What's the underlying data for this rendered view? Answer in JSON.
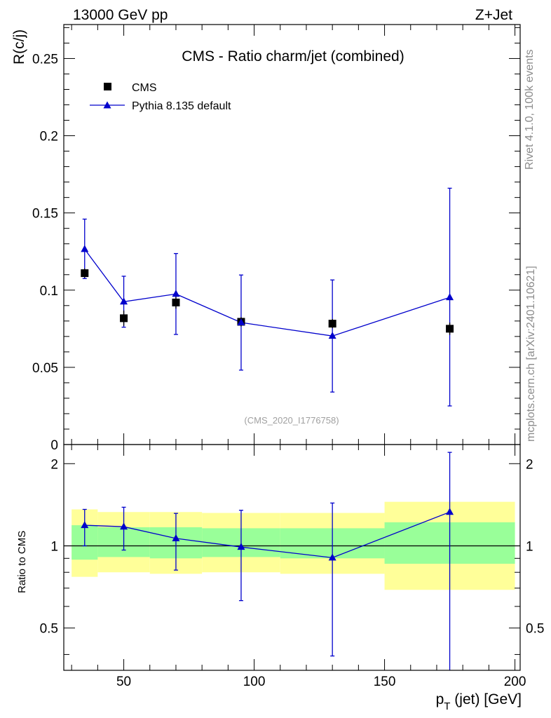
{
  "header": {
    "left_label": "13000 GeV pp",
    "right_label": "Z+Jet"
  },
  "side_labels": {
    "rivet": "Rivet 4.1.0,  100k events",
    "mcplots": "mcplots.cern.ch [arXiv:2401.10621]"
  },
  "chart_data": [
    {
      "type": "scatter",
      "panel": "main",
      "title": "CMS - Ratio charm/jet (combined)",
      "ylabel": "R(c/j)",
      "xlabel": "",
      "watermark": "(CMS_2020_I1776758)",
      "xlim": [
        27,
        202
      ],
      "ylim": [
        0,
        0.272
      ],
      "yticks": [
        0,
        0.05,
        0.1,
        0.15,
        0.2,
        0.25
      ],
      "ytick_labels": [
        "0",
        "0.05",
        "0.1",
        "0.15",
        "0.2",
        "0.25"
      ],
      "legend_position": "top-left",
      "series": [
        {
          "name": "CMS",
          "kind": "data",
          "color": "#000000",
          "x": [
            35,
            50,
            70,
            95,
            130,
            175
          ],
          "values": [
            0.111,
            0.0818,
            0.092,
            0.0795,
            0.0783,
            0.075
          ],
          "err_low": [
            0.003,
            0.005,
            0.004,
            0.003,
            0.003,
            0.004
          ],
          "err_high": [
            0.003,
            0.005,
            0.004,
            0.003,
            0.003,
            0.004
          ]
        },
        {
          "name": "Pythia 8.135 default",
          "kind": "mc",
          "color": "#0000cc",
          "x": [
            35,
            50,
            70,
            95,
            130,
            175
          ],
          "values": [
            0.1265,
            0.0925,
            0.0975,
            0.079,
            0.0703,
            0.0953
          ],
          "err_low": [
            0.019,
            0.0165,
            0.0262,
            0.0308,
            0.0363,
            0.0703
          ],
          "err_high": [
            0.0195,
            0.0165,
            0.0262,
            0.0308,
            0.0363,
            0.0707
          ]
        }
      ]
    },
    {
      "type": "scatter",
      "panel": "ratio",
      "ylabel": "Ratio to CMS",
      "xlabel": "p_T (jet) [GeV]",
      "xlabel_main": "p",
      "xlabel_sub": "T",
      "xlabel_rest": " (jet) [GeV]",
      "xlim": [
        27,
        202
      ],
      "ylim": [
        0.35,
        2.35
      ],
      "yticks": [
        0.5,
        1,
        2
      ],
      "ytick_labels": [
        "0.5",
        "1",
        "2"
      ],
      "xticks": [
        50,
        100,
        150,
        200
      ],
      "xtick_labels": [
        "50",
        "100",
        "150",
        "200"
      ],
      "bins": [
        [
          30,
          40
        ],
        [
          40,
          60
        ],
        [
          60,
          80
        ],
        [
          80,
          110
        ],
        [
          110,
          150
        ],
        [
          150,
          200
        ]
      ],
      "band_inner": [
        [
          0.89,
          1.19
        ],
        [
          0.91,
          1.17
        ],
        [
          0.9,
          1.17
        ],
        [
          0.91,
          1.16
        ],
        [
          0.9,
          1.16
        ],
        [
          0.86,
          1.22
        ]
      ],
      "band_outer": [
        [
          0.77,
          1.36
        ],
        [
          0.8,
          1.33
        ],
        [
          0.79,
          1.33
        ],
        [
          0.8,
          1.32
        ],
        [
          0.79,
          1.32
        ],
        [
          0.69,
          1.45
        ]
      ],
      "band_inner_color": "#99ff99",
      "band_outer_color": "#ffff99",
      "series": [
        {
          "name": "Pythia 8.135 default",
          "color": "#0000cc",
          "x": [
            35,
            50,
            70,
            95,
            130,
            175
          ],
          "values": [
            1.19,
            1.175,
            1.065,
            0.99,
            0.905,
            1.33
          ],
          "err_low": [
            0.19,
            0.21,
            0.25,
            0.36,
            0.51,
            1.3
          ],
          "err_high": [
            0.17,
            0.21,
            0.25,
            0.36,
            0.53,
            0.87
          ]
        }
      ]
    }
  ]
}
